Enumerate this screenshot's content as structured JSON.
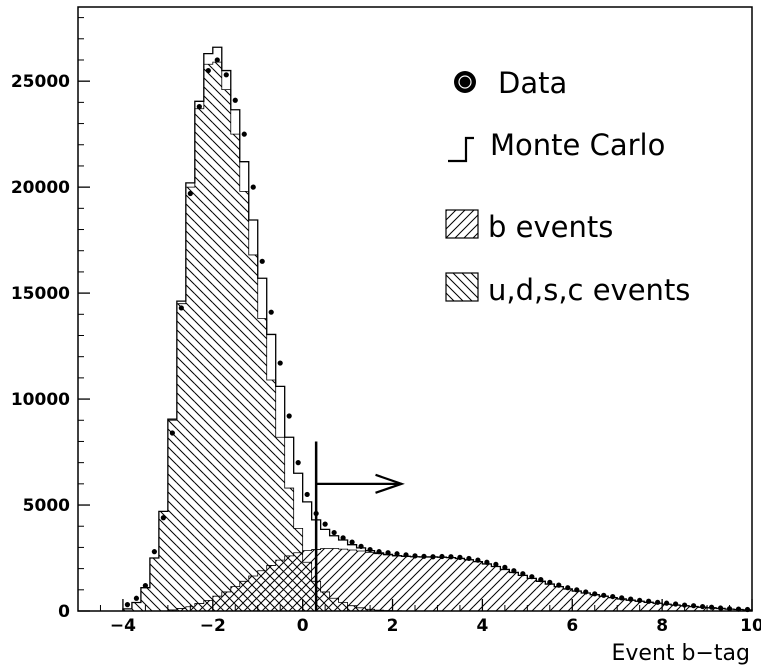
{
  "chart_data": {
    "type": "bar",
    "xlabel": "Event b−tag",
    "ylabel": "",
    "xlim": [
      -5,
      10
    ],
    "ylim": [
      0,
      28500
    ],
    "x_ticks": [
      -4,
      -2,
      0,
      2,
      4,
      6,
      8,
      10
    ],
    "x_tick_labels": [
      "−4",
      "−2",
      "0",
      "2",
      "4",
      "6",
      "8",
      "10"
    ],
    "y_ticks": [
      0,
      5000,
      10000,
      15000,
      20000,
      25000
    ],
    "y_tick_labels": [
      "0",
      "5000",
      "10000",
      "15000",
      "20000",
      "25000"
    ],
    "bin_width": 0.2,
    "udsc_events": {
      "x": [
        -4.0,
        -3.8,
        -3.6,
        -3.4,
        -3.2,
        -3.0,
        -2.8,
        -2.6,
        -2.4,
        -2.2,
        -2.0,
        -1.8,
        -1.6,
        -1.4,
        -1.2,
        -1.0,
        -0.8,
        -0.6,
        -0.4,
        -0.2,
        0.0,
        0.2,
        0.4,
        0.6,
        0.8,
        1.0,
        1.2,
        1.4,
        1.6,
        1.8,
        2.0
      ],
      "values": [
        100,
        400,
        1100,
        2500,
        4700,
        9000,
        14500,
        20000,
        23700,
        25800,
        25900,
        24600,
        22500,
        19800,
        16800,
        13800,
        10900,
        8200,
        5800,
        3900,
        2300,
        1400,
        900,
        600,
        400,
        250,
        150,
        80,
        40,
        20,
        10
      ]
    },
    "b_events": {
      "x": [
        -3.0,
        -2.8,
        -2.6,
        -2.4,
        -2.2,
        -2.0,
        -1.8,
        -1.6,
        -1.4,
        -1.2,
        -1.0,
        -0.8,
        -0.6,
        -0.4,
        -0.2,
        0.0,
        0.2,
        0.4,
        0.6,
        0.8,
        1.0,
        1.2,
        1.4,
        1.6,
        1.8,
        2.0,
        2.2,
        2.4,
        2.6,
        2.8,
        3.0,
        3.2,
        3.4,
        3.6,
        3.8,
        4.0,
        4.2,
        4.4,
        4.6,
        4.8,
        5.0,
        5.2,
        5.4,
        5.6,
        5.8,
        6.0,
        6.2,
        6.4,
        6.6,
        6.8,
        7.0,
        7.2,
        7.4,
        7.6,
        7.8,
        8.0,
        8.2,
        8.4,
        8.6,
        8.8,
        9.0,
        9.2,
        9.4,
        9.6,
        9.8
      ],
      "values": [
        50,
        120,
        200,
        350,
        500,
        700,
        900,
        1150,
        1400,
        1650,
        1900,
        2150,
        2400,
        2600,
        2750,
        2850,
        2900,
        2950,
        2950,
        2920,
        2880,
        2830,
        2770,
        2700,
        2650,
        2600,
        2580,
        2560,
        2550,
        2550,
        2540,
        2520,
        2480,
        2420,
        2330,
        2220,
        2100,
        1960,
        1820,
        1680,
        1540,
        1400,
        1270,
        1150,
        1040,
        940,
        850,
        770,
        700,
        630,
        570,
        510,
        460,
        410,
        365,
        320,
        280,
        245,
        210,
        180,
        150,
        120,
        90,
        70,
        50
      ]
    },
    "monte_carlo": {
      "x": [
        -4.0,
        -3.8,
        -3.6,
        -3.4,
        -3.2,
        -3.0,
        -2.8,
        -2.6,
        -2.4,
        -2.2,
        -2.0,
        -1.8,
        -1.6,
        -1.4,
        -1.2,
        -1.0,
        -0.8,
        -0.6,
        -0.4,
        -0.2,
        0.0,
        0.2,
        0.4,
        0.6,
        0.8,
        1.0,
        1.2,
        1.4,
        1.6,
        1.8,
        2.0,
        2.2,
        2.4,
        2.6,
        2.8,
        3.0,
        3.2,
        3.4,
        3.6,
        3.8,
        4.0,
        4.2,
        4.4,
        4.6,
        4.8,
        5.0,
        5.2,
        5.4,
        5.6,
        5.8,
        6.0,
        6.2,
        6.4,
        6.6,
        6.8,
        7.0,
        7.2,
        7.4,
        7.6,
        7.8,
        8.0,
        8.2,
        8.4,
        8.6,
        8.8,
        9.0,
        9.2,
        9.4,
        9.6,
        9.8
      ],
      "values": [
        100,
        400,
        1100,
        2500,
        4700,
        9050,
        14620,
        20200,
        24050,
        26300,
        26600,
        25500,
        23650,
        21200,
        18450,
        15700,
        13050,
        10600,
        8200,
        6500,
        5150,
        4300,
        3850,
        3550,
        3350,
        3130,
        2980,
        2850,
        2740,
        2670,
        2610,
        2580,
        2560,
        2550,
        2550,
        2540,
        2520,
        2480,
        2420,
        2330,
        2220,
        2100,
        1960,
        1820,
        1680,
        1540,
        1400,
        1270,
        1150,
        1040,
        940,
        850,
        770,
        700,
        630,
        570,
        510,
        460,
        410,
        365,
        320,
        280,
        245,
        210,
        180,
        150,
        120,
        90,
        70,
        50
      ]
    },
    "data_points": {
      "x": [
        -3.9,
        -3.7,
        -3.5,
        -3.3,
        -3.1,
        -2.9,
        -2.7,
        -2.5,
        -2.3,
        -2.1,
        -1.9,
        -1.7,
        -1.5,
        -1.3,
        -1.1,
        -0.9,
        -0.7,
        -0.5,
        -0.3,
        -0.1,
        0.1,
        0.3,
        0.5,
        0.7,
        0.9,
        1.1,
        1.3,
        1.5,
        1.7,
        1.9,
        2.1,
        2.3,
        2.5,
        2.7,
        2.9,
        3.1,
        3.3,
        3.5,
        3.7,
        3.9,
        4.1,
        4.3,
        4.5,
        4.7,
        4.9,
        5.1,
        5.3,
        5.5,
        5.7,
        5.9,
        6.1,
        6.3,
        6.5,
        6.7,
        6.9,
        7.1,
        7.3,
        7.5,
        7.7,
        7.9,
        8.1,
        8.3,
        8.5,
        8.7,
        8.9,
        9.1,
        9.3,
        9.5,
        9.7,
        9.9
      ],
      "values": [
        300,
        600,
        1200,
        2800,
        4400,
        8400,
        14300,
        19700,
        23800,
        25500,
        26000,
        25300,
        24100,
        22500,
        20000,
        16500,
        14100,
        11700,
        9200,
        7000,
        5500,
        4600,
        4100,
        3700,
        3450,
        3250,
        3050,
        2900,
        2800,
        2750,
        2700,
        2650,
        2600,
        2580,
        2560,
        2570,
        2560,
        2530,
        2480,
        2400,
        2300,
        2200,
        2060,
        1900,
        1760,
        1620,
        1480,
        1350,
        1220,
        1100,
        1000,
        900,
        810,
        740,
        680,
        620,
        560,
        500,
        460,
        410,
        370,
        330,
        280,
        250,
        210,
        180,
        140,
        110,
        90,
        70
      ]
    },
    "cut": {
      "x": 0.3,
      "line_top": 8000,
      "arrow_to_x": 2.2,
      "arrow_y": 6000
    },
    "legend": [
      {
        "key": "data",
        "label": "Data"
      },
      {
        "key": "monte_carlo",
        "label": "Monte Carlo"
      },
      {
        "key": "b_events",
        "label": "b events"
      },
      {
        "key": "udsc_events",
        "label": "u,d,s,c events"
      }
    ],
    "legend_position": "top-right",
    "grid": false
  }
}
